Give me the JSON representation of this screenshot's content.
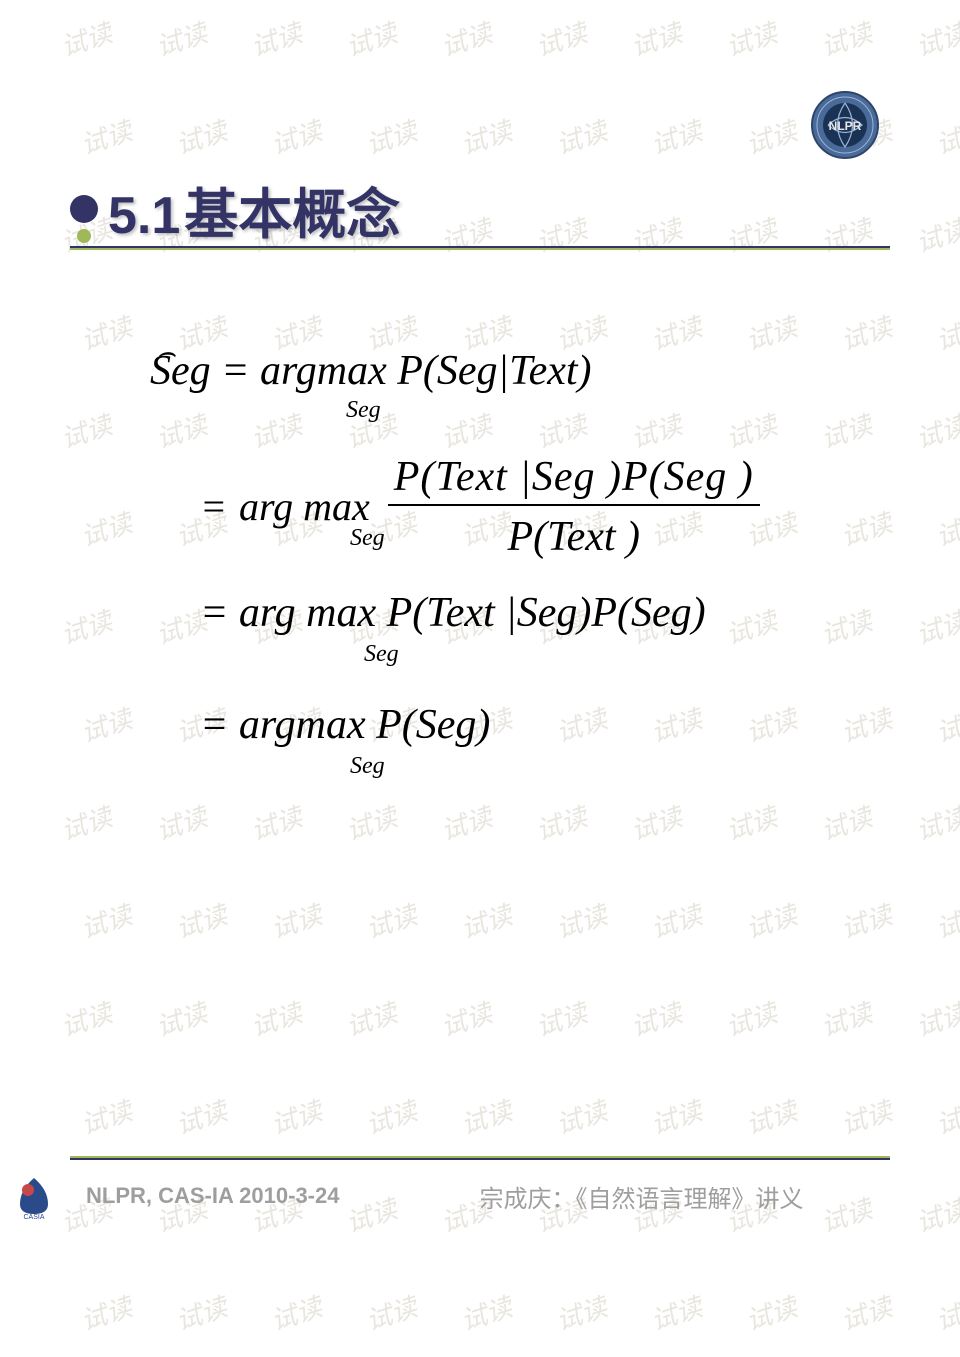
{
  "watermark": "试读",
  "watermark_color": "#d8d2c8",
  "title_number": "5.1",
  "title_text": "基本概念",
  "title_color": "#333366",
  "accent_color": "#9fb958",
  "math": {
    "hat": "⌢",
    "line1": "Seg = argmax P(Seg|Text)",
    "sub1": "Seg",
    "line2_eq": "=",
    "line2_arg": "arg max",
    "line2_frac_top": "P(Text |Seg )P(Seg )",
    "line2_frac_bot": "P(Text )",
    "sub2": "Seg",
    "line3": "= arg max P(Text |Seg)P(Seg)",
    "sub3": "Seg",
    "line4": "= argmax P(Seg)",
    "sub4": "Seg"
  },
  "footer_left": "NLPR, CAS-IA    2010-3-24",
  "footer_right": "宗成庆：《自然语言理解》讲义",
  "footer_color": "#9e9e9e",
  "logo_label": "NLPR",
  "casia_label": "CASIA"
}
